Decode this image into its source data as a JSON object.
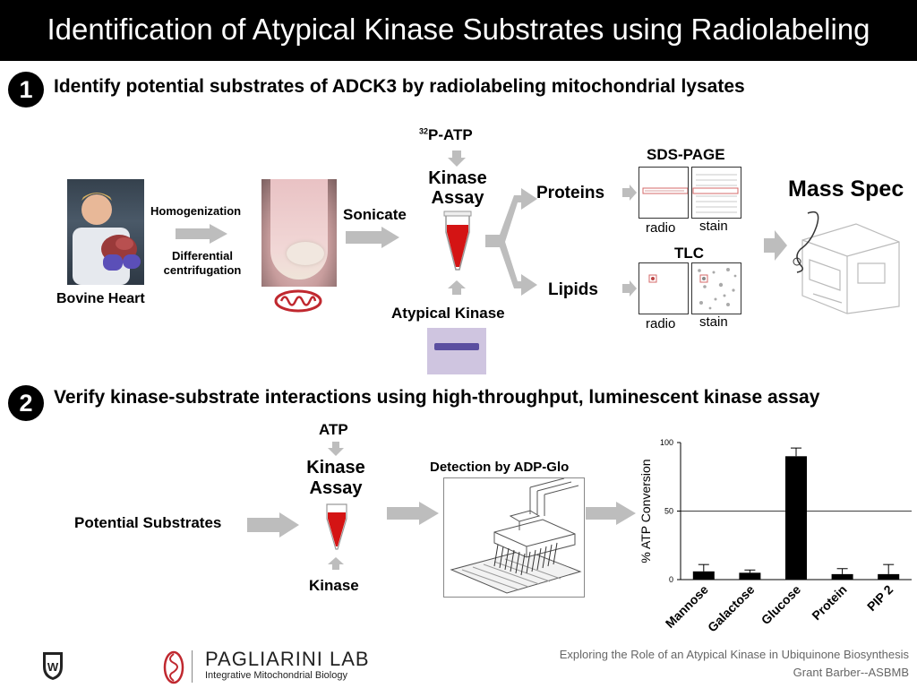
{
  "title": "Identification of Atypical Kinase Substrates using Radiolabeling",
  "step1": {
    "number": "❶",
    "heading": "Identify potential substrates of  ADCK3 by radiolabeling mitochondrial lysates",
    "source_label": "Bovine Heart",
    "homogenization": "Homogenization",
    "differential_1": "Differential",
    "differential_2": "centrifugation",
    "sonicate": "Sonicate",
    "atp_sup": "32",
    "atp_label": "P-ATP",
    "kinase_assay_1": "Kinase",
    "kinase_assay_2": "Assay",
    "atypical_kinase": "Atypical Kinase",
    "proteins": "Proteins",
    "lipids": "Lipids",
    "sds_page": "SDS-PAGE",
    "tlc": "TLC",
    "radio": "radio",
    "stain": "stain",
    "mass_spec": "Mass Spec"
  },
  "step2": {
    "number": "❷",
    "heading": "Verify kinase-substrate interactions using high-throughput, luminescent kinase assay",
    "potential_substrates": "Potential Substrates",
    "atp": "ATP",
    "kinase_assay_1": "Kinase",
    "kinase_assay_2": "Assay",
    "kinase": "Kinase",
    "detection": "Detection by ADP-Glo"
  },
  "chart_data": {
    "type": "bar",
    "ylabel": "% ATP Conversion",
    "categories": [
      "Mannose",
      "Galactose",
      "Glucose",
      "Protein",
      "PIP 2"
    ],
    "values": [
      6,
      5,
      90,
      4,
      4
    ],
    "errors": [
      5,
      2,
      6,
      4,
      7
    ],
    "ylim": [
      0,
      100
    ],
    "yticks": [
      "0",
      "50",
      "100"
    ],
    "grid": "horizontal at 50",
    "bar_color": "#000000"
  },
  "footer": {
    "lab_name": "PAGLIARINI LAB",
    "lab_subtitle": "Integrative Mitochondrial Biology",
    "line1": "Exploring the Role of an Atypical Kinase in Ubiquinone Biosynthesis",
    "line2": "Grant Barber--ASBMB"
  },
  "colors": {
    "title_bg": "#000000",
    "tube_red": "#d41414",
    "arrow_gray": "#bdbdbd",
    "mito_red": "#c0282f"
  }
}
